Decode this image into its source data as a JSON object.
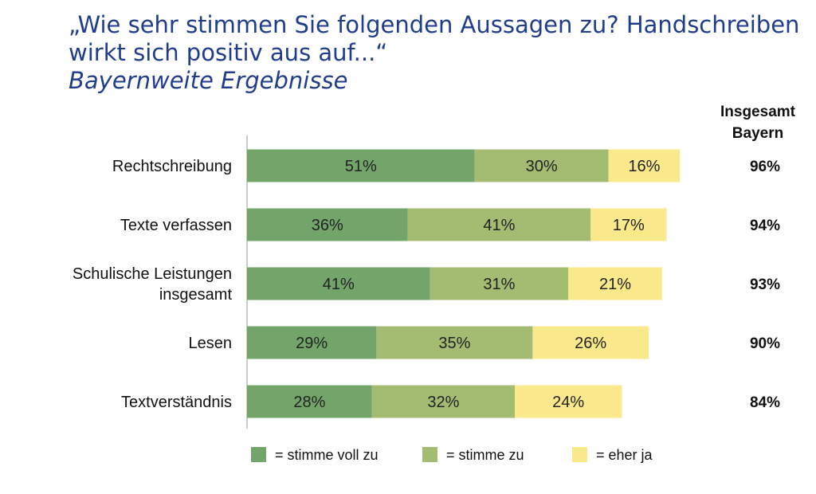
{
  "title": "„Wie sehr stimmen Sie folgenden Aussagen zu? Handschreiben wirkt sich positiv aus auf...“",
  "subtitle": "Bayernweite Ergebnisse",
  "total_header": [
    "Insgesamt",
    "Bayern"
  ],
  "colors": {
    "stimme_voll_zu": "#73a56a",
    "stimme_zu": "#a3bc72",
    "eher_ja": "#f9e98b",
    "title": "#1f3d8c"
  },
  "chart_data": {
    "type": "bar",
    "orientation": "horizontal",
    "stacked": true,
    "categories": [
      [
        "Rechtschreibung"
      ],
      [
        "Texte verfassen"
      ],
      [
        "Schulische Leistungen",
        "insgesamt"
      ],
      [
        "Lesen"
      ],
      [
        "Textverständnis"
      ]
    ],
    "series": [
      {
        "name": "= stimme voll zu",
        "values": [
          51,
          36,
          41,
          29,
          28
        ],
        "labels": [
          "51%",
          "36%",
          "41%",
          "29%",
          "28%"
        ]
      },
      {
        "name": "= stimme zu",
        "values": [
          30,
          41,
          31,
          35,
          32
        ],
        "labels": [
          "30%",
          "41%",
          "31%",
          "35%",
          "32%"
        ]
      },
      {
        "name": "= eher ja",
        "values": [
          16,
          17,
          21,
          26,
          24
        ],
        "labels": [
          "16%",
          "17%",
          "21%",
          "26%",
          "24%"
        ]
      }
    ],
    "totals": [
      "96%",
      "94%",
      "93%",
      "90%",
      "84%"
    ],
    "xlim": [
      0,
      100
    ],
    "grid": false,
    "legend": "bottom"
  }
}
